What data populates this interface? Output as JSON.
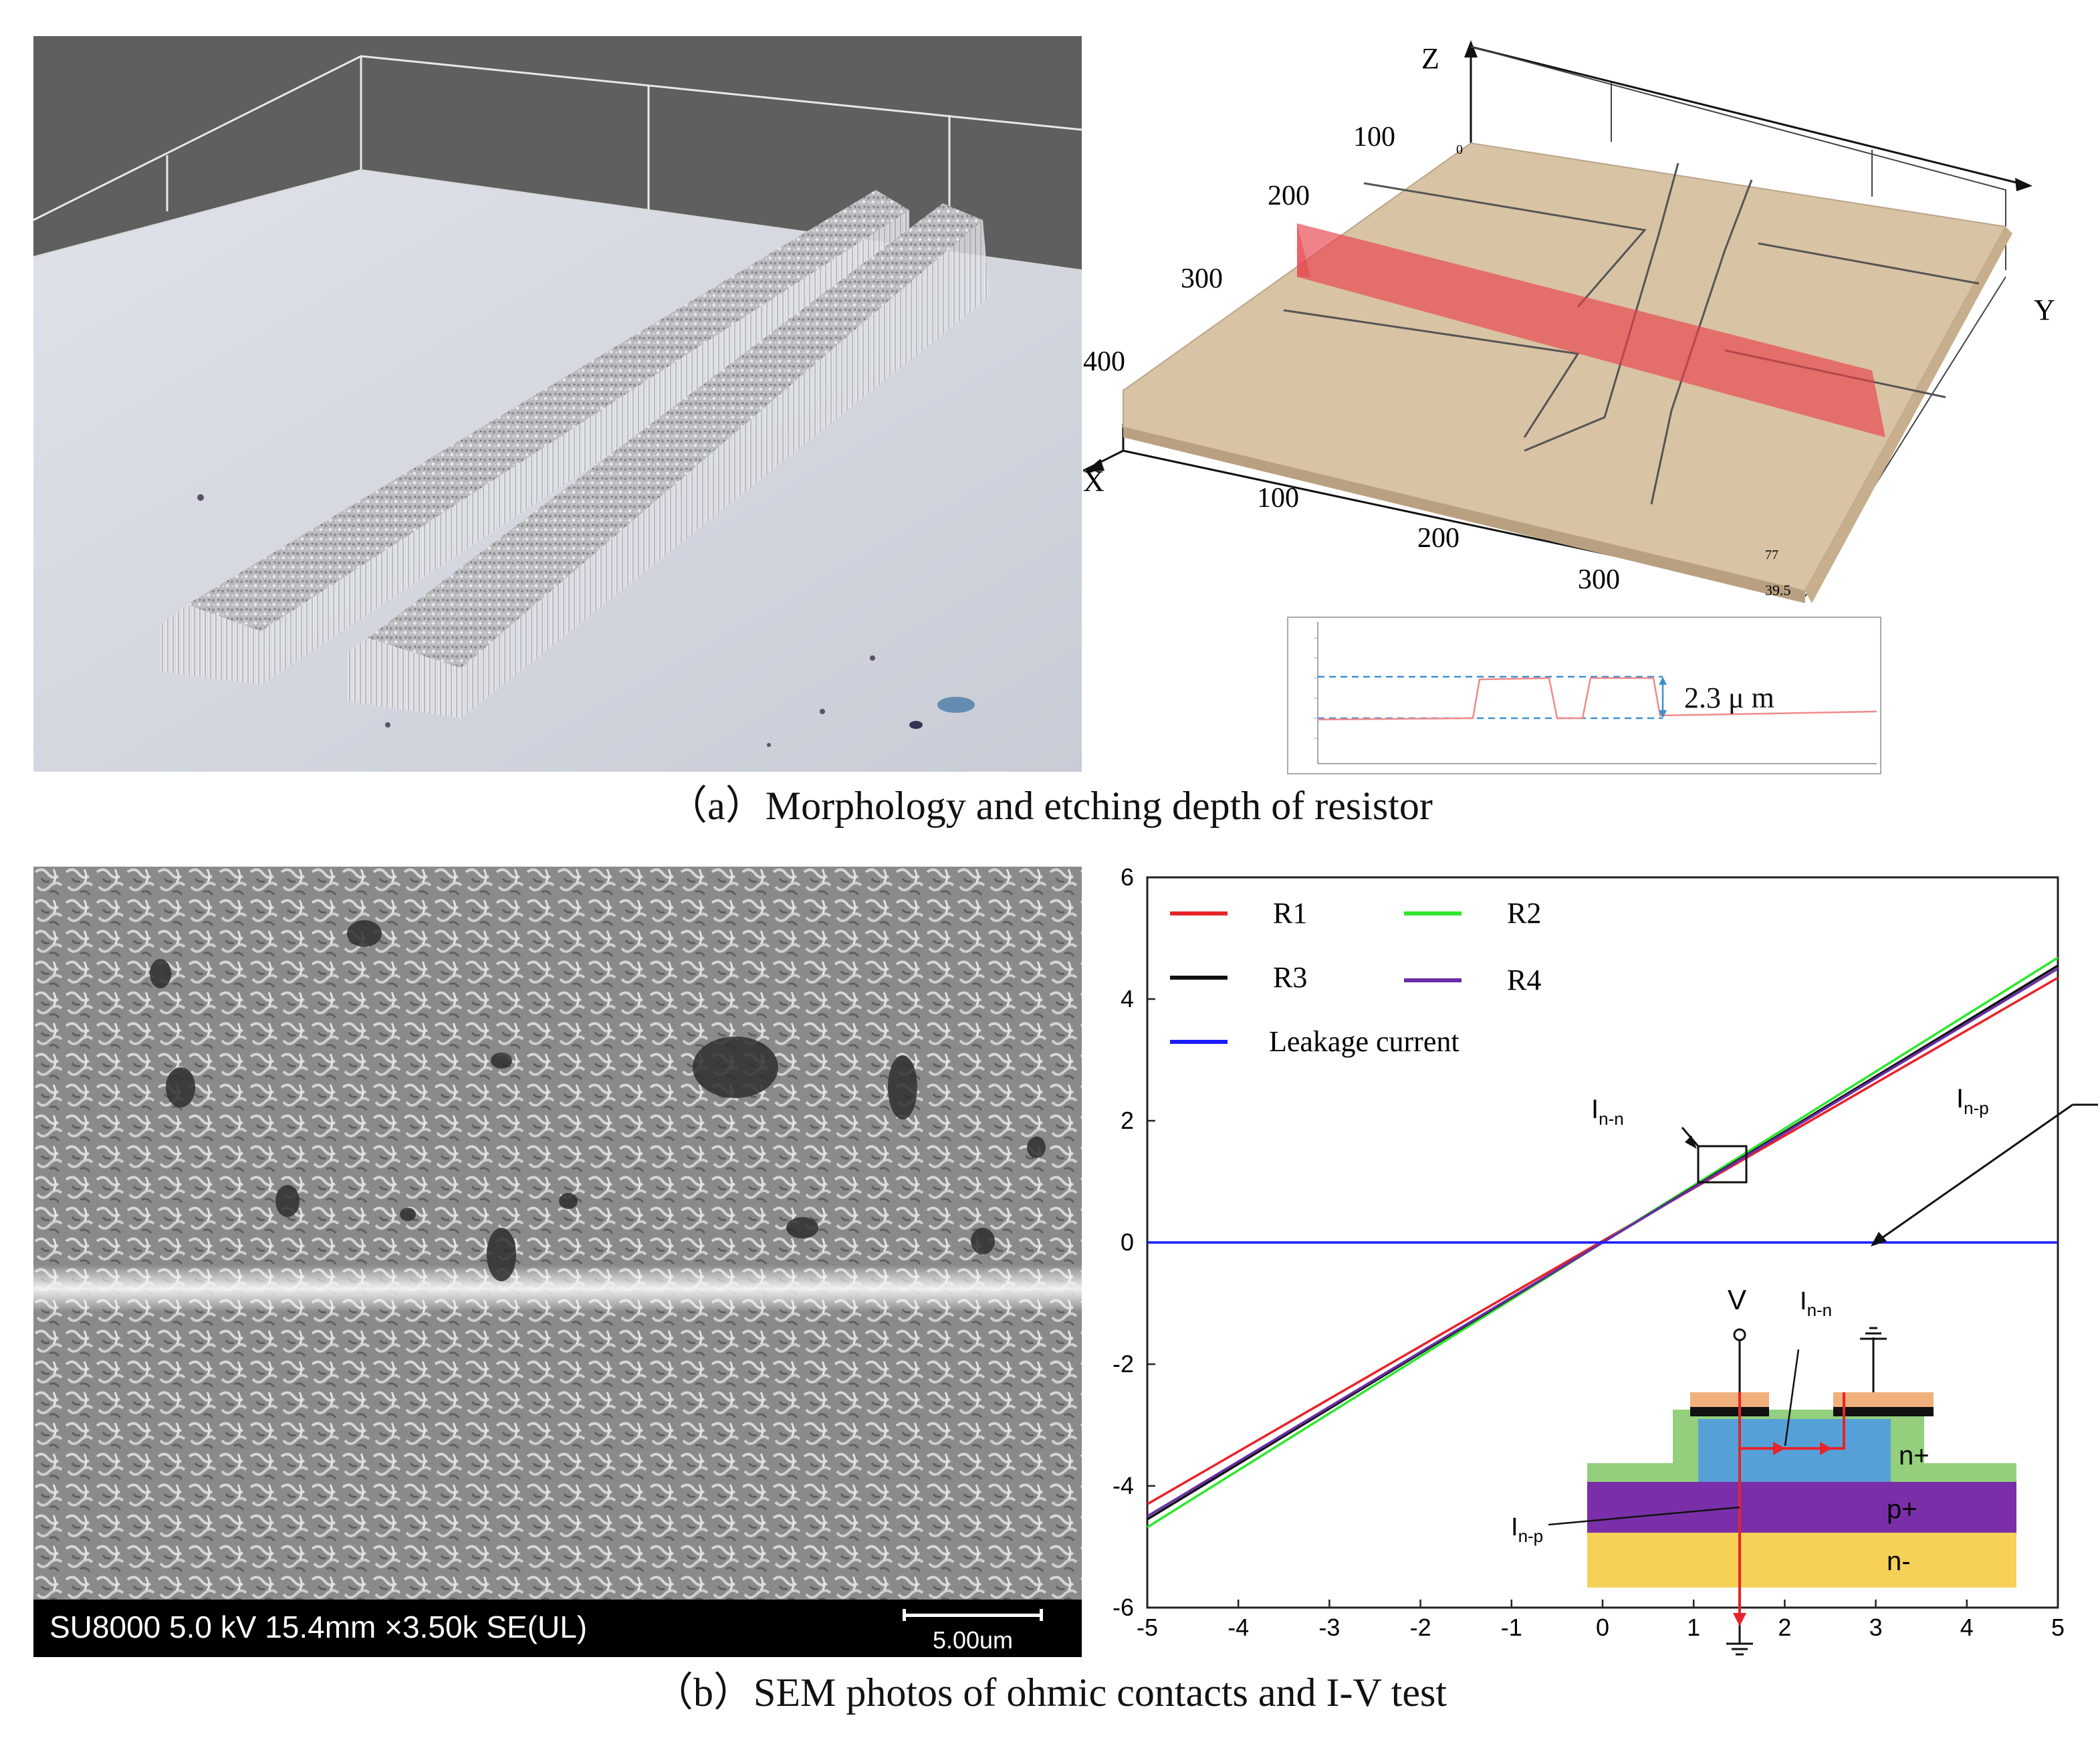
{
  "figure": {
    "caption_a": "（a）Morphology and etching depth of resistor",
    "caption_b": "（b）SEM photos of ohmic contacts and I-V test"
  },
  "panel_a_3d": {
    "axis_z": "Z",
    "axis_y": "Y",
    "axis_x": "X",
    "x_ticks": [
      "100",
      "200",
      "300",
      "400"
    ],
    "y_ticks": [
      "100",
      "200",
      "300"
    ],
    "corner_top": "0",
    "corner_bottom": "77",
    "corner_bottom2": "39.5"
  },
  "profile": {
    "depth_label": "2.3 μ m"
  },
  "sem": {
    "info": "SU8000 5.0 kV  15.4mm ×3.50k SE(UL)",
    "scale_label": "5.00um"
  },
  "chart_data": {
    "type": "line",
    "title": "",
    "xlabel": "",
    "ylabel": "",
    "xlim": [
      -5,
      5
    ],
    "ylim": [
      -6,
      6
    ],
    "x_ticks": [
      -5,
      -4,
      -3,
      -2,
      -1,
      0,
      1,
      2,
      3,
      4,
      5
    ],
    "y_ticks": [
      -6,
      -4,
      -2,
      0,
      2,
      4,
      6
    ],
    "grid": false,
    "legend": "top-left",
    "series": [
      {
        "name": "R1",
        "color": "#e8232a",
        "x": [
          -5,
          5
        ],
        "y": [
          -4.3,
          4.35
        ]
      },
      {
        "name": "R2",
        "color": "#2ee62e",
        "x": [
          -5,
          5
        ],
        "y": [
          -4.68,
          4.68
        ]
      },
      {
        "name": "R3",
        "color": "#111111",
        "x": [
          -5,
          5
        ],
        "y": [
          -4.55,
          4.55
        ]
      },
      {
        "name": "R4",
        "color": "#6a2ea8",
        "x": [
          -5,
          5
        ],
        "y": [
          -4.5,
          4.5
        ]
      },
      {
        "name": "Leakage current",
        "color": "#1a1aff",
        "x": [
          -5,
          5
        ],
        "y": [
          0,
          0
        ]
      }
    ],
    "annotations": [
      {
        "text_main": "I",
        "text_sub": "n-n"
      },
      {
        "text_main": "I",
        "text_sub": "n-p"
      }
    ]
  },
  "inset": {
    "v_label": "V",
    "inn_main": "I",
    "inn_sub": "n-n",
    "inp_main": "I",
    "inp_sub": "n-p",
    "layer_n_plus": "n+",
    "layer_p_plus": "p+",
    "layer_n_minus": "n-",
    "colors": {
      "n_minus": "#f5d158",
      "p_plus": "#7a2fa8",
      "n_plus": "#56a0d8",
      "oxide": "#93cf7d",
      "metal": "#f0b07c",
      "current": "#e8232a"
    }
  }
}
